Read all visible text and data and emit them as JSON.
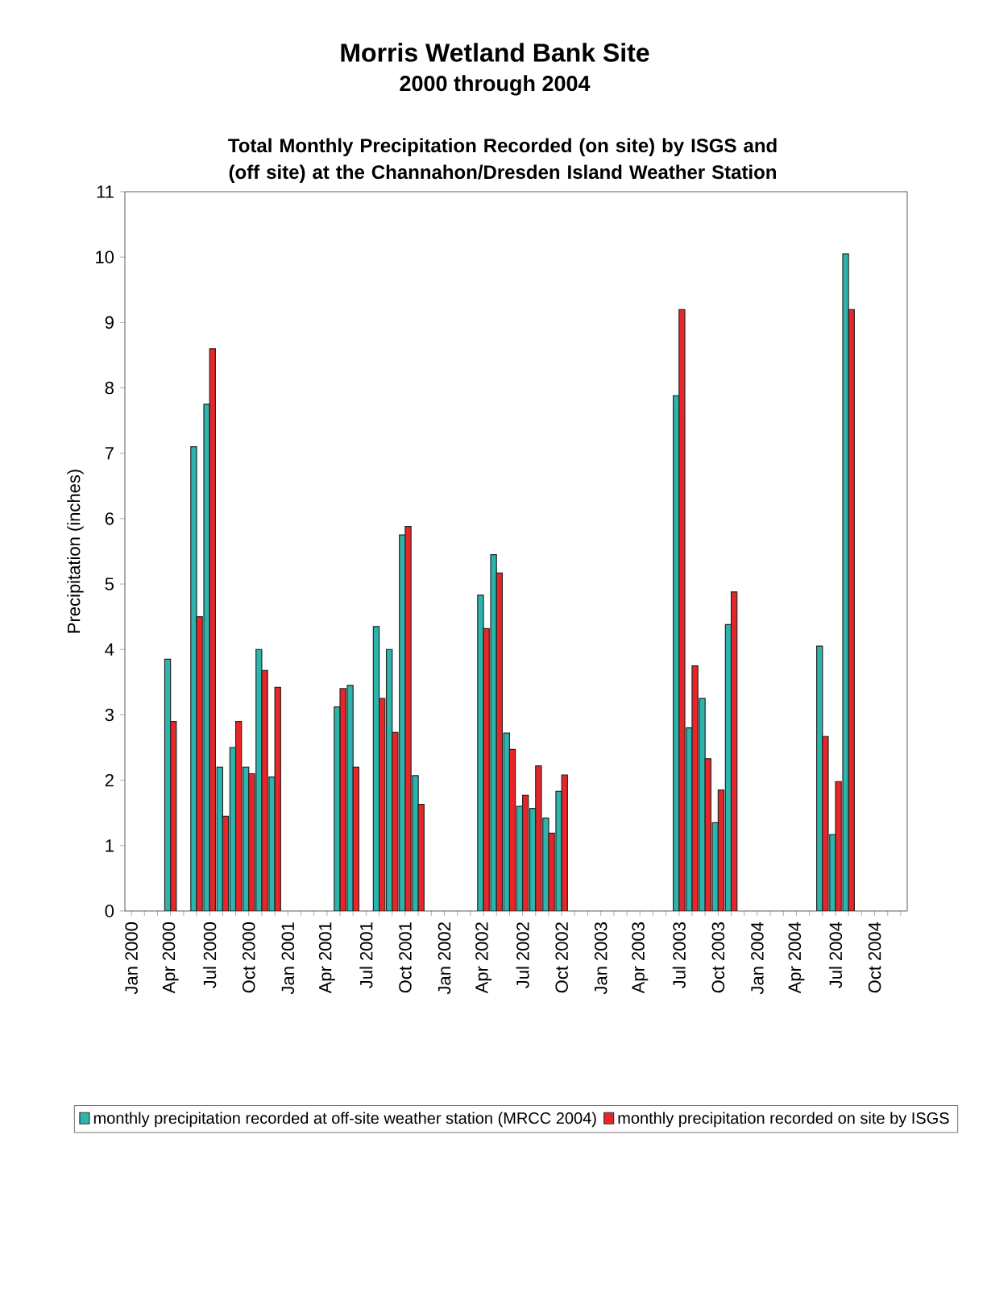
{
  "chart_data": {
    "type": "bar",
    "title": "Morris Wetland Bank Site",
    "subtitle": "2000 through 2004",
    "annotations": [
      "Total Monthly Precipitation Recorded (on site) by ISGS and (off site) at the Channahon/Dresden Island Weather Station"
    ],
    "ylabel": "Precipitation (inches)",
    "categories": [
      "Jan 2000",
      null,
      null,
      "Apr 2000",
      null,
      null,
      "Jul 2000",
      null,
      null,
      "Oct 2000",
      null,
      null,
      "Jan 2001",
      null,
      null,
      "Apr 2001",
      null,
      null,
      "Jul 2001",
      null,
      null,
      "Oct 2001",
      null,
      null,
      "Jan 2002",
      null,
      null,
      "Apr 2002",
      null,
      null,
      "Jul 2002",
      null,
      null,
      "Oct 2002",
      null,
      null,
      "Jan 2003",
      null,
      null,
      "Apr 2003",
      null,
      null,
      "Jul 2003",
      null,
      null,
      "Oct 2003",
      null,
      null,
      "Jan 2004",
      null,
      null,
      "Apr 2004",
      null,
      null,
      "Jul 2004",
      null,
      null,
      "Oct 2004",
      null,
      null
    ],
    "series": [
      {
        "name": "monthly precipitation recorded at off-site weather station (MRCC 2004)",
        "color": "#2bb5ad",
        "values": [
          null,
          null,
          null,
          3.85,
          null,
          7.1,
          7.75,
          2.2,
          2.5,
          2.2,
          4.0,
          2.05,
          null,
          null,
          null,
          null,
          3.12,
          3.45,
          null,
          4.35,
          4.0,
          5.75,
          2.07,
          null,
          null,
          null,
          null,
          4.83,
          5.45,
          2.72,
          1.6,
          1.57,
          1.42,
          1.83,
          null,
          null,
          null,
          null,
          null,
          null,
          null,
          null,
          7.88,
          2.8,
          3.25,
          1.35,
          4.38,
          null,
          null,
          null,
          null,
          null,
          null,
          4.05,
          1.17,
          10.05,
          null,
          null,
          null,
          null
        ]
      },
      {
        "name": "monthly precipitation recorded on site by ISGS",
        "color": "#e8262a",
        "values": [
          null,
          null,
          null,
          2.9,
          null,
          4.5,
          8.6,
          1.45,
          2.9,
          2.1,
          3.68,
          3.42,
          null,
          null,
          null,
          null,
          3.4,
          2.2,
          null,
          3.25,
          2.73,
          5.88,
          1.63,
          null,
          null,
          null,
          null,
          4.32,
          5.17,
          2.47,
          1.77,
          2.22,
          1.19,
          2.08,
          null,
          null,
          null,
          null,
          null,
          null,
          null,
          null,
          9.2,
          3.75,
          2.33,
          1.85,
          4.88,
          null,
          null,
          null,
          null,
          null,
          null,
          2.67,
          1.98,
          9.2,
          null,
          null,
          null,
          null
        ]
      }
    ],
    "ylim": [
      0,
      11
    ],
    "yticks": [
      0,
      1,
      2,
      3,
      4,
      5,
      6,
      7,
      8,
      9,
      10,
      11
    ],
    "grid": false,
    "legend": "bottom"
  }
}
